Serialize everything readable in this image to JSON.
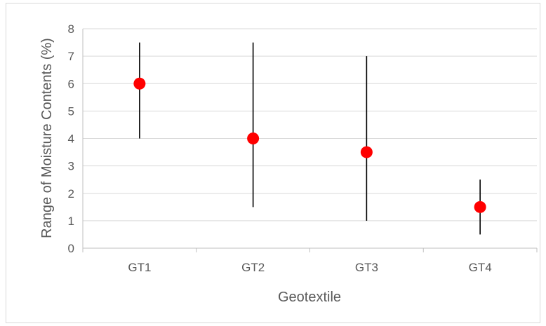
{
  "chart_data": {
    "type": "scatter",
    "title": "",
    "xlabel": "Geotextile",
    "ylabel": "Range of Moisture Contents (%)",
    "categories": [
      "GT1",
      "GT2",
      "GT3",
      "GT4"
    ],
    "series": [
      {
        "values": [
          6,
          4,
          3.5,
          1.5
        ],
        "low": [
          4,
          1.5,
          1,
          0.5
        ],
        "high": [
          7.5,
          7.5,
          7,
          2.5
        ],
        "marker_color": "#ff0000",
        "error_bar_color": "#000000"
      }
    ],
    "ylim": [
      0,
      8
    ],
    "yticks": [
      "0",
      "1",
      "2",
      "3",
      "4",
      "5",
      "6",
      "7",
      "8"
    ],
    "grid": true,
    "legend": "none"
  }
}
